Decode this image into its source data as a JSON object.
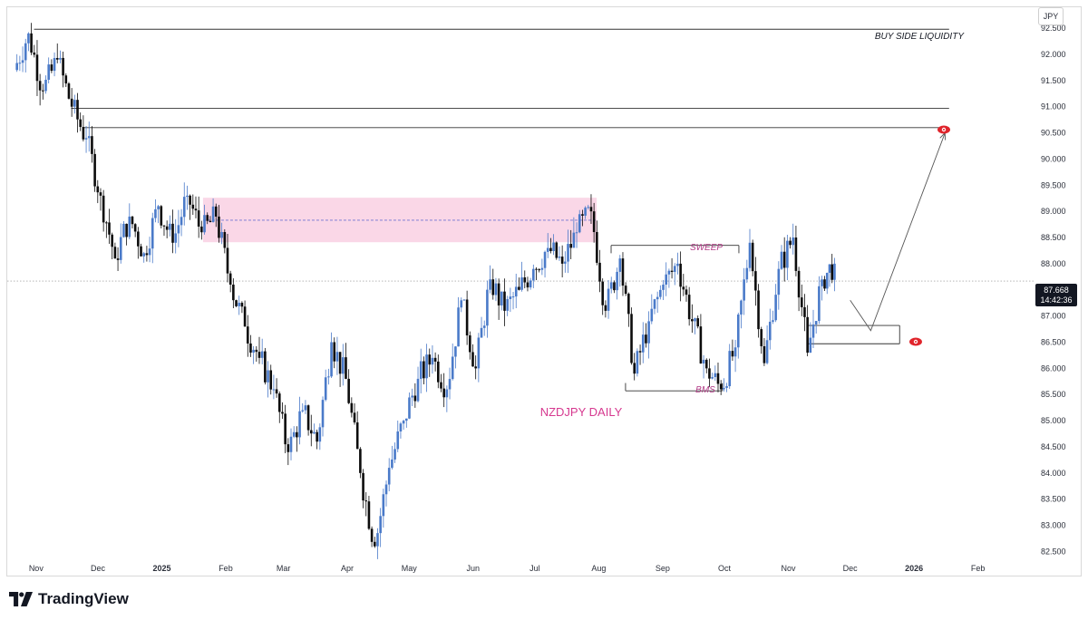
{
  "header": {
    "partial_text": ""
  },
  "currency": "JPY",
  "current_price": {
    "value": "87.668",
    "countdown": "14:42:36"
  },
  "brand": {
    "name": "TradingView"
  },
  "colors": {
    "bull": "#4a7ac9",
    "bear": "#0c0c0c",
    "zone_fill": "#f9d0e3",
    "zone_line": "#6f73d2",
    "title": "#d6388f",
    "annotation": "#b13a86",
    "eye_icon": "#e0242b"
  },
  "chart_data": {
    "type": "candlestick",
    "title": "NZDJPY DAILY",
    "xlabel": "",
    "ylabel": "",
    "ylim": [
      82.3,
      92.9
    ],
    "y_ticks": [
      "92.500",
      "92.000",
      "91.500",
      "91.000",
      "90.500",
      "90.000",
      "89.500",
      "89.000",
      "88.500",
      "88.000",
      "87.500",
      "87.000",
      "86.500",
      "86.000",
      "85.500",
      "85.000",
      "84.500",
      "84.000",
      "83.500",
      "83.000",
      "82.500"
    ],
    "x_ticks": [
      {
        "label": "Nov",
        "date": "2024-11-01",
        "bold": false
      },
      {
        "label": "Dec",
        "date": "2024-12-01",
        "bold": false
      },
      {
        "label": "2025",
        "date": "2025-01-01",
        "bold": true
      },
      {
        "label": "Feb",
        "date": "2025-02-01",
        "bold": false
      },
      {
        "label": "Mar",
        "date": "2025-03-01",
        "bold": false
      },
      {
        "label": "Apr",
        "date": "2025-04-01",
        "bold": false
      },
      {
        "label": "May",
        "date": "2025-05-01",
        "bold": false
      },
      {
        "label": "Jun",
        "date": "2025-06-01",
        "bold": false
      },
      {
        "label": "Jul",
        "date": "2025-07-01",
        "bold": false
      },
      {
        "label": "Aug",
        "date": "2025-08-01",
        "bold": false
      },
      {
        "label": "Sep",
        "date": "2025-09-01",
        "bold": false
      },
      {
        "label": "Oct",
        "date": "2025-10-01",
        "bold": false
      },
      {
        "label": "Nov",
        "date": "2025-11-01",
        "bold": false
      },
      {
        "label": "Dec",
        "date": "2025-12-01",
        "bold": false
      },
      {
        "label": "2026",
        "date": "2026-01-01",
        "bold": true
      },
      {
        "label": "Feb",
        "date": "2026-02-01",
        "bold": false
      }
    ],
    "x_start": "2024-10-18",
    "x_end": "2026-02-28",
    "candles": [
      [
        "2024-10-22",
        91.7,
        92.4
      ],
      [
        "2024-10-29",
        92.4,
        91.3
      ],
      [
        "2024-11-05",
        91.3,
        91.9
      ],
      [
        "2024-11-12",
        91.9,
        91.0
      ],
      [
        "2024-11-19",
        91.0,
        90.4
      ],
      [
        "2024-11-26",
        90.4,
        89.3
      ],
      [
        "2024-12-03",
        89.3,
        88.1
      ],
      [
        "2024-12-10",
        88.1,
        88.9
      ],
      [
        "2024-12-17",
        88.9,
        88.2
      ],
      [
        "2024-12-24",
        88.2,
        89.1
      ],
      [
        "2024-12-31",
        89.1,
        88.4
      ],
      [
        "2025-01-07",
        88.4,
        89.3
      ],
      [
        "2025-01-14",
        89.3,
        88.6
      ],
      [
        "2025-01-21",
        88.6,
        88.9
      ],
      [
        "2025-01-28",
        88.9,
        87.6
      ],
      [
        "2025-02-04",
        87.6,
        86.8
      ],
      [
        "2025-02-11",
        86.8,
        86.2
      ],
      [
        "2025-02-18",
        86.2,
        85.6
      ],
      [
        "2025-02-25",
        85.6,
        84.4
      ],
      [
        "2025-03-04",
        84.4,
        85.2
      ],
      [
        "2025-03-11",
        85.2,
        84.6
      ],
      [
        "2025-03-18",
        84.6,
        86.5
      ],
      [
        "2025-03-25",
        86.5,
        85.8
      ],
      [
        "2025-04-01",
        85.8,
        84.0
      ],
      [
        "2025-04-08",
        84.0,
        82.6
      ],
      [
        "2025-04-15",
        82.6,
        84.1
      ],
      [
        "2025-04-22",
        84.1,
        85.0
      ],
      [
        "2025-04-29",
        85.0,
        85.8
      ],
      [
        "2025-05-06",
        85.8,
        86.2
      ],
      [
        "2025-05-13",
        86.2,
        85.6
      ],
      [
        "2025-05-20",
        85.6,
        87.3
      ],
      [
        "2025-05-27",
        87.3,
        86.0
      ],
      [
        "2025-06-03",
        86.0,
        87.7
      ],
      [
        "2025-06-10",
        87.7,
        87.1
      ],
      [
        "2025-06-17",
        87.1,
        87.5
      ],
      [
        "2025-06-24",
        87.5,
        87.9
      ],
      [
        "2025-07-01",
        87.9,
        88.3
      ],
      [
        "2025-07-08",
        88.3,
        88.0
      ],
      [
        "2025-07-15",
        88.0,
        88.6
      ],
      [
        "2025-07-22",
        88.6,
        89.0
      ],
      [
        "2025-07-29",
        89.0,
        87.1
      ],
      [
        "2025-08-05",
        87.1,
        88.1
      ],
      [
        "2025-08-12",
        88.1,
        85.9
      ],
      [
        "2025-08-19",
        85.9,
        86.9
      ],
      [
        "2025-08-26",
        86.9,
        87.6
      ],
      [
        "2025-09-02",
        87.6,
        88.0
      ],
      [
        "2025-09-09",
        88.0,
        86.9
      ],
      [
        "2025-09-16",
        86.9,
        86.0
      ],
      [
        "2025-09-23",
        86.0,
        85.6
      ],
      [
        "2025-09-30",
        85.6,
        86.4
      ],
      [
        "2025-10-07",
        86.4,
        88.4
      ],
      [
        "2025-10-14",
        88.4,
        86.1
      ],
      [
        "2025-10-21",
        86.1,
        87.9
      ],
      [
        "2025-10-28",
        87.9,
        88.5
      ],
      [
        "2025-11-04",
        88.5,
        86.3
      ],
      [
        "2025-11-11",
        86.3,
        87.7
      ],
      [
        "2025-11-18",
        87.7,
        88.0
      ],
      [
        "2025-11-24",
        88.0,
        87.668
      ]
    ],
    "annotations": [
      {
        "text": "BUY SIDE LIQUIDITY"
      },
      {
        "text": "SWEEP"
      },
      {
        "text": "BMS"
      }
    ],
    "levels": [
      {
        "name": "buy-side-liquidity",
        "value": 92.48,
        "from": "2024-10-31",
        "to": "2026-01-18"
      },
      {
        "name": "upper-level-a",
        "value": 90.97,
        "from": "2024-11-18",
        "to": "2026-01-18"
      },
      {
        "name": "upper-level-b",
        "value": 90.6,
        "from": "2024-11-24",
        "to": "2026-01-18"
      },
      {
        "name": "sweep-top",
        "value": 88.35,
        "from": "2025-08-07",
        "to": "2025-10-08"
      },
      {
        "name": "bms-bottom",
        "value": 85.57,
        "from": "2025-08-14",
        "to": "2025-09-30"
      },
      {
        "name": "demand-top",
        "value": 86.82,
        "from": "2025-11-10",
        "to": "2025-12-25"
      },
      {
        "name": "demand-bottom",
        "value": 86.47,
        "from": "2025-11-10",
        "to": "2025-12-25"
      }
    ],
    "zone": {
      "from": "2025-01-21",
      "to": "2025-07-31",
      "top": 89.26,
      "bottom": 88.41,
      "mid": 88.83
    },
    "projection": [
      [
        "2025-12-01",
        87.3
      ],
      [
        "2025-12-11",
        86.72
      ],
      [
        "2026-01-16",
        90.5
      ]
    ],
    "last_price_line": 87.668
  }
}
